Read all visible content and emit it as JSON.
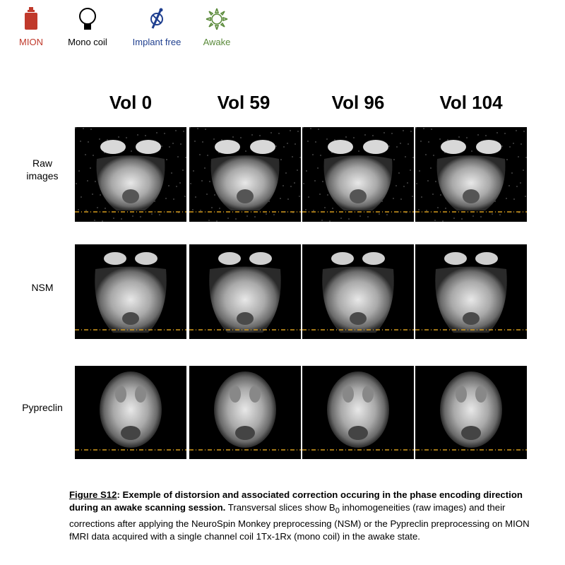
{
  "legend": [
    {
      "label": "MION",
      "color": "#c0392b",
      "icon": "bottle-icon"
    },
    {
      "label": "Mono coil",
      "color": "#000000",
      "icon": "coil-icon"
    },
    {
      "label": "Implant free",
      "color": "#1f3f8f",
      "icon": "implant-free-icon"
    },
    {
      "label": "Awake",
      "color": "#5a8a3a",
      "icon": "sun-icon"
    }
  ],
  "columns": [
    "Vol 0",
    "Vol 59",
    "Vol 96",
    "Vol 104"
  ],
  "rows": [
    {
      "label_line1": "Raw",
      "label_line2": "images"
    },
    {
      "label_line1": "NSM",
      "label_line2": ""
    },
    {
      "label_line1": "Pypreclin",
      "label_line2": ""
    }
  ],
  "caption": {
    "figure_label": "Figure S12",
    "bold_text": ": Exemple of distorsion and associated correction occuring in the phase encoding direction during an awake scanning session.",
    "text_part1": " Transversal slices show B",
    "subscript": "0",
    "text_part2": " inhomogeneities (raw images) and their corrections after applying the NeuroSpin Monkey preprocessing (NSM) or the Pypreclin preprocessing on MION fMRI data acquired with a single channel coil 1Tx-1Rx (mono coil) in the awake state."
  },
  "colors": {
    "mion": "#c0392b",
    "implant": "#1f3f8f",
    "awake": "#5a8a3a",
    "dashed_line": "#d49a1c"
  }
}
